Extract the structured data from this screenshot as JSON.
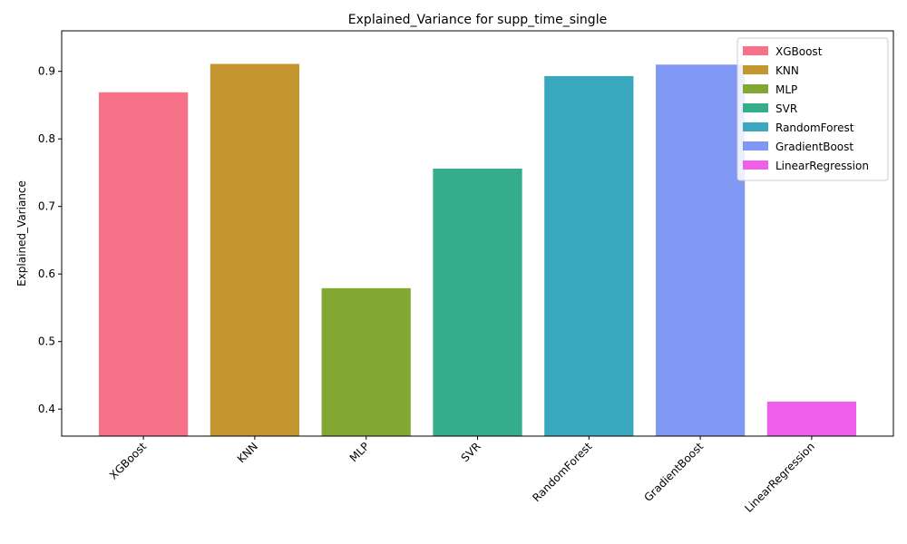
{
  "chart_data": {
    "type": "bar",
    "title": "Explained_Variance for supp_time_single",
    "xlabel": "",
    "ylabel": "Explained_Variance",
    "categories": [
      "XGBoost",
      "KNN",
      "MLP",
      "SVR",
      "RandomForest",
      "GradientBoost",
      "LinearRegression"
    ],
    "values": [
      0.869,
      0.911,
      0.579,
      0.756,
      0.893,
      0.91,
      0.411
    ],
    "colors": [
      "#f77189",
      "#c4962f",
      "#83a832",
      "#36ad8a",
      "#39a8bf",
      "#8197f4",
      "#f05fe9"
    ],
    "ylim": [
      0.36,
      0.96
    ],
    "yticks": [
      "0.4",
      "0.5",
      "0.6",
      "0.7",
      "0.8",
      "0.9"
    ],
    "grid": false,
    "legend": {
      "placement": "top-right",
      "entries": [
        "XGBoost",
        "KNN",
        "MLP",
        "SVR",
        "RandomForest",
        "GradientBoost",
        "LinearRegression"
      ]
    }
  }
}
